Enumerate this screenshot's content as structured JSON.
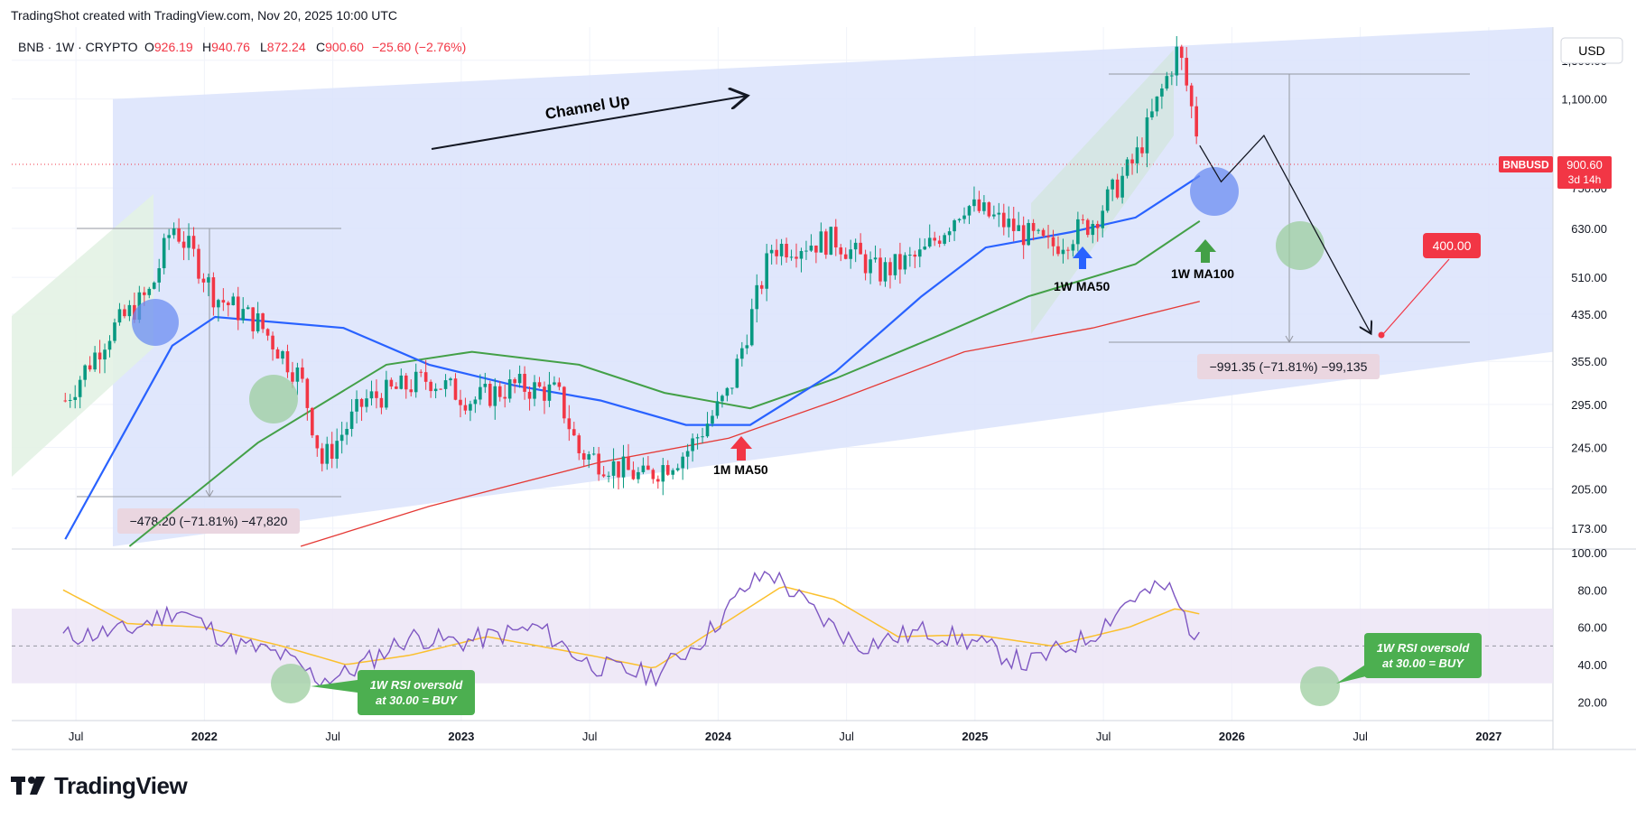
{
  "header": {
    "caption": "TradingShot created with TradingView.com, Nov 20, 2025 10:00 UTC"
  },
  "legend": {
    "symbol": "BNB · 1W · CRYPTO",
    "o_label": "O",
    "o_value": "926.19",
    "h_label": "H",
    "h_value": "940.76",
    "l_label": "L",
    "l_value": "872.24",
    "c_label": "C",
    "c_value": "900.60",
    "change": "−25.60 (−2.76%)"
  },
  "currency_button": "USD",
  "price_tag": {
    "symbol": "BNBUSD",
    "price": "900.60",
    "countdown": "3d 14h"
  },
  "target_tag": "400.00",
  "annotations": {
    "channel_up": "Channel Up",
    "ma50_1w": "1W MA50",
    "ma100_1w": "1W MA100",
    "ma50_1m": "1M MA50",
    "measure_2022": "−478.20 (−71.81%) −47,820",
    "measure_2025": "−991.35 (−71.81%) −99,135",
    "rsi_note_line1": "1W RSI oversold",
    "rsi_note_line2": "at 30.00 = BUY"
  },
  "brand": {
    "name": "TradingView"
  },
  "colors": {
    "bull": "#089981",
    "bear": "#f23645",
    "ma50_1w": "#2962ff",
    "ma100_1w": "#43a047",
    "ma50_1m": "#e53935",
    "channel": "#dbe3fc",
    "rsi": "#7e57c2",
    "rsi_ma": "#fbc02d",
    "note_green": "#4caf50",
    "target_red": "#f23645",
    "measure_bg": "#ead6e0"
  },
  "chart_data": [
    {
      "type": "candlestick",
      "title": "BNB · 1W · CRYPTO",
      "yscale": "log",
      "ylim": [
        160,
        1500
      ],
      "y_ticks": [
        "1,300.00",
        "1,100.00",
        "750.00",
        "630.00",
        "510.00",
        "435.00",
        "355.00",
        "295.00",
        "245.00",
        "205.00",
        "173.00"
      ],
      "x_ticks": [
        "Jul",
        "2022",
        "Jul",
        "2023",
        "Jul",
        "2024",
        "Jul",
        "2025",
        "Jul",
        "2026",
        "Jul",
        "2027"
      ],
      "price_path": [
        [
          "2021-06",
          300
        ],
        [
          "2021-08",
          400
        ],
        [
          "2021-10",
          480
        ],
        [
          "2021-11",
          640
        ],
        [
          "2021-12",
          560
        ],
        [
          "2022-01",
          470
        ],
        [
          "2022-03",
          420
        ],
        [
          "2022-05",
          330
        ],
        [
          "2022-06",
          230
        ],
        [
          "2022-08",
          300
        ],
        [
          "2022-11",
          330
        ],
        [
          "2023-01",
          300
        ],
        [
          "2023-03",
          320
        ],
        [
          "2023-05",
          310
        ],
        [
          "2023-06",
          240
        ],
        [
          "2023-09",
          215
        ],
        [
          "2023-11",
          240
        ],
        [
          "2024-01",
          310
        ],
        [
          "2024-03",
          580
        ],
        [
          "2024-06",
          600
        ],
        [
          "2024-08",
          520
        ],
        [
          "2024-10",
          560
        ],
        [
          "2024-12",
          700
        ],
        [
          "2025-02",
          640
        ],
        [
          "2025-04",
          580
        ],
        [
          "2025-06",
          650
        ],
        [
          "2025-08",
          850
        ],
        [
          "2025-10",
          1370
        ],
        [
          "2025-11",
          900
        ]
      ],
      "ma_1w_50": [
        [
          "2021-06",
          165
        ],
        [
          "2021-11",
          380
        ],
        [
          "2022-01",
          430
        ],
        [
          "2022-07",
          410
        ],
        [
          "2022-11",
          350
        ],
        [
          "2023-03",
          320
        ],
        [
          "2023-07",
          300
        ],
        [
          "2023-11",
          270
        ],
        [
          "2024-02",
          270
        ],
        [
          "2024-06",
          340
        ],
        [
          "2024-10",
          470
        ],
        [
          "2025-01",
          580
        ],
        [
          "2025-05",
          620
        ],
        [
          "2025-08",
          660
        ],
        [
          "2025-11",
          790
        ]
      ],
      "ma_1w_100": [
        [
          "2021-09",
          160
        ],
        [
          "2022-03",
          250
        ],
        [
          "2022-09",
          350
        ],
        [
          "2023-01",
          370
        ],
        [
          "2023-06",
          350
        ],
        [
          "2023-10",
          310
        ],
        [
          "2024-02",
          290
        ],
        [
          "2024-06",
          330
        ],
        [
          "2024-11",
          400
        ],
        [
          "2025-03",
          470
        ],
        [
          "2025-08",
          540
        ],
        [
          "2025-11",
          650
        ]
      ],
      "ma_1m_50": [
        [
          "2022-05",
          160
        ],
        [
          "2022-11",
          190
        ],
        [
          "2023-07",
          230
        ],
        [
          "2024-01",
          255
        ],
        [
          "2024-06",
          300
        ],
        [
          "2024-12",
          370
        ],
        [
          "2025-06",
          410
        ],
        [
          "2025-11",
          460
        ]
      ],
      "projection": [
        [
          "2025-11",
          900
        ],
        [
          "2025-12",
          770
        ],
        [
          "2026-02",
          940
        ],
        [
          "2026-07",
          400
        ]
      ],
      "target": 400
    },
    {
      "type": "line",
      "title": "RSI",
      "ylim": [
        10,
        100
      ],
      "y_ticks": [
        "100.00",
        "80.00",
        "60.00",
        "40.00",
        "20.00"
      ],
      "bands": [
        30,
        70
      ],
      "midline": 50,
      "series": [
        {
          "values": [
            [
              2021.45,
              55
            ],
            [
              2021.7,
              58
            ],
            [
              2021.9,
              70
            ],
            [
              2022.1,
              52
            ],
            [
              2022.3,
              45
            ],
            [
              2022.45,
              32
            ],
            [
              2022.55,
              35
            ],
            [
              2022.8,
              55
            ],
            [
              2023.0,
              52
            ],
            [
              2023.3,
              60
            ],
            [
              2023.5,
              40
            ],
            [
              2023.75,
              34
            ],
            [
              2023.95,
              55
            ],
            [
              2024.1,
              80
            ],
            [
              2024.2,
              90
            ],
            [
              2024.4,
              65
            ],
            [
              2024.55,
              50
            ],
            [
              2024.8,
              58
            ],
            [
              2025.0,
              52
            ],
            [
              2025.2,
              40
            ],
            [
              2025.45,
              55
            ],
            [
              2025.6,
              75
            ],
            [
              2025.75,
              82
            ],
            [
              2025.88,
              50
            ]
          ]
        },
        {
          "values": [
            [
              2021.45,
              80
            ],
            [
              2021.7,
              62
            ],
            [
              2022.0,
              60
            ],
            [
              2022.3,
              50
            ],
            [
              2022.55,
              40
            ],
            [
              2022.8,
              45
            ],
            [
              2023.1,
              55
            ],
            [
              2023.5,
              45
            ],
            [
              2023.75,
              38
            ],
            [
              2024.0,
              60
            ],
            [
              2024.25,
              82
            ],
            [
              2024.45,
              75
            ],
            [
              2024.7,
              55
            ],
            [
              2025.0,
              56
            ],
            [
              2025.3,
              50
            ],
            [
              2025.6,
              60
            ],
            [
              2025.78,
              70
            ],
            [
              2025.88,
              67
            ]
          ]
        }
      ]
    }
  ]
}
